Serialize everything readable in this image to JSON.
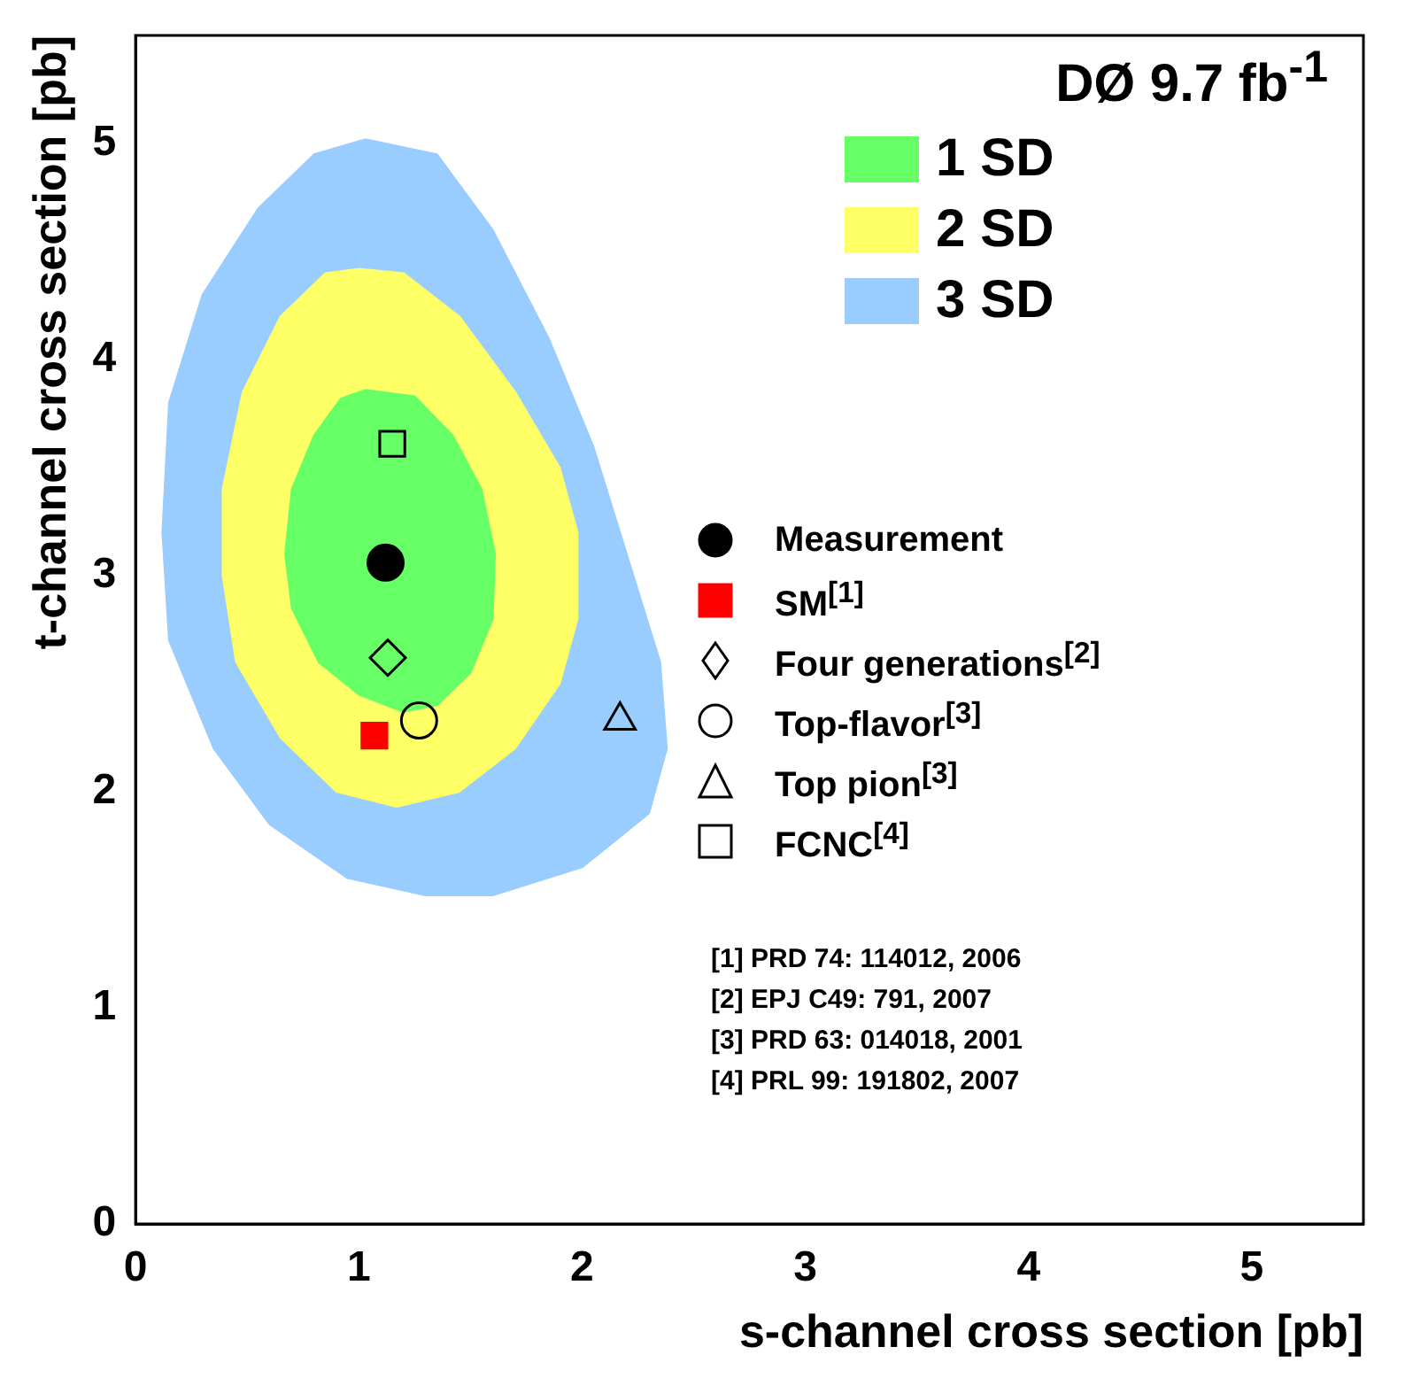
{
  "chart_data": {
    "type": "scatter",
    "title": "DØ 9.7 fb$^{-1}$",
    "xlabel": "s-channel cross section [pb]",
    "ylabel": "t-channel cross section [pb]",
    "xlim": [
      0,
      5.5
    ],
    "ylim": [
      0,
      5.5
    ],
    "xticks": [
      0,
      1,
      2,
      3,
      4,
      5
    ],
    "yticks": [
      0,
      1,
      2,
      3,
      4,
      5
    ],
    "grid": false,
    "legend": "right",
    "series": [
      {
        "name": "3 SD",
        "type": "area",
        "color": "#99ccff",
        "x": [
          1.03,
          1.35,
          1.6,
          1.85,
          2.05,
          2.2,
          2.35,
          2.38,
          2.3,
          2.0,
          1.6,
          1.3,
          0.95,
          0.6,
          0.35,
          0.15,
          0.12,
          0.15,
          0.3,
          0.55,
          0.8,
          1.03
        ],
        "values": [
          5.02,
          4.95,
          4.6,
          4.1,
          3.6,
          3.1,
          2.6,
          2.2,
          1.9,
          1.65,
          1.52,
          1.52,
          1.6,
          1.85,
          2.2,
          2.7,
          3.2,
          3.8,
          4.3,
          4.7,
          4.95,
          5.02
        ]
      },
      {
        "name": "2 SD",
        "type": "area",
        "color": "#ffff66",
        "x": [
          1.0,
          1.2,
          1.45,
          1.7,
          1.9,
          1.98,
          1.98,
          1.9,
          1.7,
          1.45,
          1.17,
          0.9,
          0.65,
          0.45,
          0.39,
          0.39,
          0.48,
          0.65,
          0.85,
          1.0
        ],
        "values": [
          4.42,
          4.4,
          4.2,
          3.85,
          3.5,
          3.2,
          2.8,
          2.5,
          2.2,
          2.0,
          1.93,
          2.0,
          2.25,
          2.6,
          3.0,
          3.4,
          3.85,
          4.2,
          4.4,
          4.42
        ]
      },
      {
        "name": "1 SD",
        "type": "area",
        "color": "#66ff66",
        "x": [
          1.03,
          1.25,
          1.42,
          1.55,
          1.61,
          1.6,
          1.5,
          1.35,
          1.2,
          1.0,
          0.82,
          0.7,
          0.67,
          0.7,
          0.8,
          0.92,
          1.03
        ],
        "values": [
          3.86,
          3.83,
          3.65,
          3.4,
          3.1,
          2.8,
          2.55,
          2.4,
          2.37,
          2.45,
          2.6,
          2.85,
          3.1,
          3.4,
          3.65,
          3.82,
          3.86
        ]
      },
      {
        "name": "Measurement",
        "type": "scatter",
        "marker": "circle",
        "color": "#000000",
        "x": [
          1.12
        ],
        "values": [
          3.06
        ]
      },
      {
        "name": "SM$^{[1]}$",
        "type": "scatter",
        "marker": "square",
        "color": "#ff0000",
        "x": [
          1.07
        ],
        "values": [
          2.26
        ]
      },
      {
        "name": "Four generations$^{[2]}$",
        "type": "scatter",
        "marker": "diamond-open",
        "color": "#000000",
        "x": [
          1.13
        ],
        "values": [
          2.62
        ]
      },
      {
        "name": "Top-flavor$^{[3]}$",
        "type": "scatter",
        "marker": "circle-open",
        "color": "#000000",
        "x": [
          1.27
        ],
        "values": [
          2.33
        ]
      },
      {
        "name": "Top pion$^{[3]}$",
        "type": "scatter",
        "marker": "triangle-open",
        "color": "#000000",
        "x": [
          2.17
        ],
        "values": [
          2.33
        ]
      },
      {
        "name": "FCNC$^{[4]}$",
        "type": "scatter",
        "marker": "square-open",
        "color": "#000000",
        "x": [
          1.15
        ],
        "values": [
          3.61
        ]
      }
    ],
    "annotations": [
      "[1] PRD 74: 114012, 2006",
      "[2] EPJ C49: 791, 2007",
      "[3] PRD 63: 014018, 2001",
      "[4] PRL 99: 191802, 2007"
    ]
  }
}
